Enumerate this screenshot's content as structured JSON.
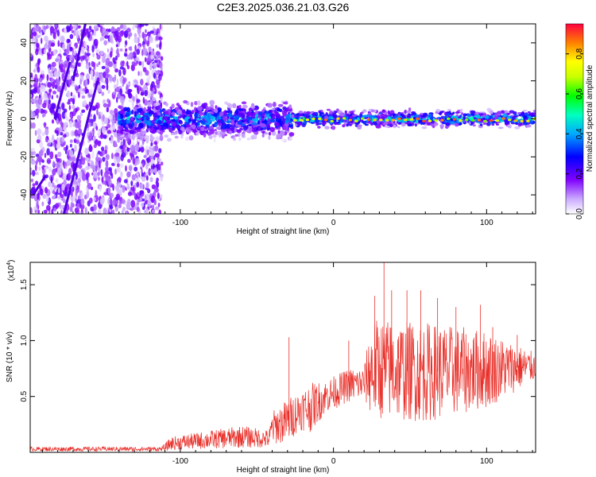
{
  "figure": {
    "title": "C2E3.2025.036.21.03.G26"
  },
  "chart_data": [
    {
      "type": "heatmap",
      "xlabel": "Height of straight line (km)",
      "ylabel": "Frequency (Hz)",
      "xlim": [
        -198,
        132
      ],
      "ylim": [
        -50,
        50
      ],
      "x_ticks": [
        "-100",
        "0",
        "100"
      ],
      "y_ticks": [
        "-40",
        "-20",
        "0",
        "20",
        "40"
      ],
      "colorbar": {
        "label": "Normalized spectral amplitude",
        "range": [
          0,
          0.95
        ],
        "ticks": [
          "0.0",
          "0.2",
          "0.4",
          "0.6",
          "0.8"
        ]
      },
      "description_of_regions": [
        {
          "x_range": [
            -198,
            -112
          ],
          "freq_range": [
            -50,
            50
          ],
          "amplitude": 0.15
        },
        {
          "x_range": [
            -140,
            -27
          ],
          "freq_range": [
            -10,
            8
          ],
          "amplitude": 0.3
        },
        {
          "x_range": [
            -27,
            132
          ],
          "freq_range": [
            -4,
            4
          ],
          "amplitude": 0.5
        }
      ]
    },
    {
      "type": "line",
      "xlabel": "Height of straight line (km)",
      "ylabel": "SNR (10 * v/v)",
      "exponent_label": "(x10",
      "exponent_value": "4",
      "exponent_close": ")",
      "xlim": [
        -198,
        132
      ],
      "ylim": [
        0,
        1.7
      ],
      "x_ticks": [
        "-100",
        "0",
        "100"
      ],
      "y_ticks": [
        "0.5",
        "1.0",
        "1.5"
      ],
      "series_color": "#e8302a",
      "envelope": [
        {
          "x": -198,
          "mean": 0.03,
          "amp": 0.02
        },
        {
          "x": -112,
          "mean": 0.03,
          "amp": 0.02
        },
        {
          "x": -106,
          "mean": 0.08,
          "amp": 0.06
        },
        {
          "x": -60,
          "mean": 0.14,
          "amp": 0.1
        },
        {
          "x": -42,
          "mean": 0.12,
          "amp": 0.08
        },
        {
          "x": -40,
          "mean": 0.22,
          "amp": 0.15
        },
        {
          "x": -30,
          "mean": 0.28,
          "amp": 0.2
        },
        {
          "x": -22,
          "mean": 0.38,
          "amp": 0.18
        },
        {
          "x": -15,
          "mean": 0.4,
          "amp": 0.22
        },
        {
          "x": -5,
          "mean": 0.5,
          "amp": 0.15
        },
        {
          "x": 10,
          "mean": 0.6,
          "amp": 0.15
        },
        {
          "x": 20,
          "mean": 0.62,
          "amp": 0.15
        },
        {
          "x": 25,
          "mean": 0.75,
          "amp": 0.45
        },
        {
          "x": 60,
          "mean": 0.72,
          "amp": 0.45
        },
        {
          "x": 100,
          "mean": 0.74,
          "amp": 0.35
        },
        {
          "x": 132,
          "mean": 0.77,
          "amp": 0.12
        }
      ],
      "spikes": [
        {
          "x": -29,
          "y": 1.03
        },
        {
          "x": 10,
          "y": 1.0
        },
        {
          "x": 27,
          "y": 1.4
        },
        {
          "x": 33,
          "y": 1.7
        },
        {
          "x": 38,
          "y": 1.45
        },
        {
          "x": 48,
          "y": 1.45
        },
        {
          "x": 57,
          "y": 1.45
        },
        {
          "x": 68,
          "y": 1.38
        },
        {
          "x": 80,
          "y": 1.3
        },
        {
          "x": 96,
          "y": 1.32
        },
        {
          "x": 104,
          "y": 1.12
        },
        {
          "x": 120,
          "y": 1.05
        }
      ]
    }
  ]
}
